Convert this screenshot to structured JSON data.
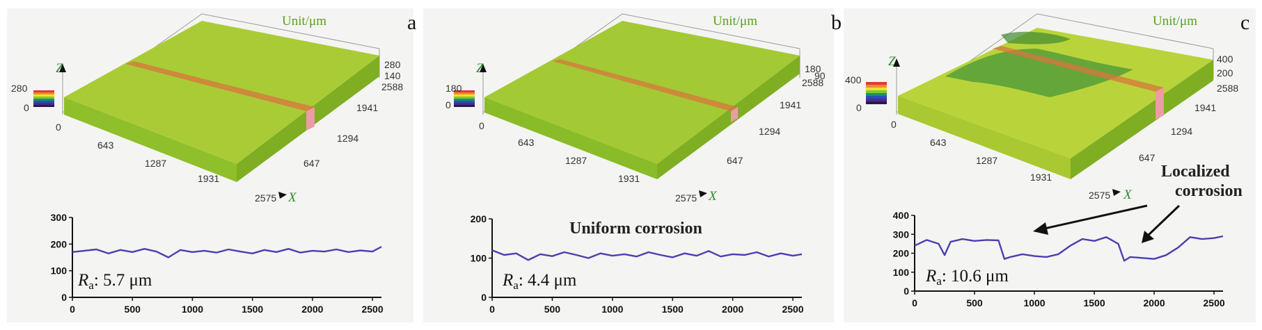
{
  "panels": [
    {
      "label": "a",
      "unit": "Unit/μm",
      "surface": {
        "colorbar_max": "280",
        "colorbar_min": "0",
        "x_ticks": [
          "0",
          "643",
          "1287",
          "1931",
          "2575"
        ],
        "y_ticks": [
          "647",
          "1294",
          "1941",
          "2588"
        ],
        "z_ticks": [
          "280",
          "140"
        ],
        "x_name": "X",
        "z_name": "Z",
        "colors": {
          "top": "#a9cc36",
          "front": "#8fbf2a"
        }
      },
      "profile": {
        "ra_symbol": "R",
        "ra_sub": "a",
        "ra_value": ": 5.7 μm",
        "y_ticks": [
          "300",
          "200",
          "100",
          "0"
        ],
        "x_ticks": [
          "0",
          "500",
          "1000",
          "1500",
          "2000",
          "2500"
        ]
      }
    },
    {
      "label": "b",
      "unit": "Unit/μm",
      "surface": {
        "colorbar_max": "180",
        "colorbar_min": "0",
        "x_ticks": [
          "0",
          "643",
          "1287",
          "1931",
          "2575"
        ],
        "y_ticks": [
          "647",
          "1294",
          "1941",
          "2588"
        ],
        "z_ticks": [
          "180",
          "90"
        ],
        "x_name": "X",
        "z_name": "Z",
        "colors": {
          "top": "#a3c934",
          "front": "#8abb28"
        }
      },
      "profile": {
        "ra_symbol": "R",
        "ra_sub": "a",
        "ra_value": ": 4.4 μm",
        "y_ticks": [
          "200",
          "100",
          "0"
        ],
        "x_ticks": [
          "0",
          "500",
          "1000",
          "1500",
          "2000",
          "2500"
        ]
      },
      "annotation": "Uniform corrosion"
    },
    {
      "label": "c",
      "unit": "Unit/μm",
      "surface": {
        "colorbar_max": "400",
        "colorbar_min": "0",
        "x_ticks": [
          "0",
          "643",
          "1287",
          "1931",
          "2575"
        ],
        "y_ticks": [
          "647",
          "1294",
          "1941",
          "2588"
        ],
        "z_ticks": [
          "400",
          "200"
        ],
        "x_name": "X",
        "z_name": "Z",
        "colors": {
          "top": "#b9d43a",
          "front": "#a9c832"
        }
      },
      "profile": {
        "ra_symbol": "R",
        "ra_sub": "a",
        "ra_value": ": 10.6 μm",
        "y_ticks": [
          "400",
          "300",
          "200",
          "100",
          "0"
        ],
        "x_ticks": [
          "0",
          "500",
          "1000",
          "1500",
          "2000",
          "2500"
        ]
      },
      "annotation_line1": "Localized",
      "annotation_line2": "corrosion"
    }
  ],
  "chart_data": [
    {
      "type": "line",
      "panel": "a",
      "xlim": [
        0,
        2575
      ],
      "ylim": [
        0,
        300
      ],
      "x": [
        0,
        100,
        200,
        300,
        400,
        500,
        600,
        700,
        800,
        900,
        1000,
        1100,
        1200,
        1300,
        1400,
        1500,
        1600,
        1700,
        1800,
        1900,
        2000,
        2100,
        2200,
        2300,
        2400,
        2500,
        2575
      ],
      "y": [
        170,
        175,
        180,
        165,
        178,
        170,
        182,
        172,
        150,
        178,
        170,
        175,
        168,
        180,
        172,
        165,
        178,
        170,
        182,
        168,
        175,
        172,
        180,
        170,
        176,
        172,
        190
      ]
    },
    {
      "type": "line",
      "panel": "b",
      "xlim": [
        0,
        2575
      ],
      "ylim": [
        0,
        200
      ],
      "x": [
        0,
        100,
        200,
        300,
        400,
        500,
        600,
        700,
        800,
        900,
        1000,
        1100,
        1200,
        1300,
        1400,
        1500,
        1600,
        1700,
        1800,
        1900,
        2000,
        2100,
        2200,
        2300,
        2400,
        2500,
        2575
      ],
      "y": [
        120,
        108,
        112,
        95,
        110,
        105,
        115,
        108,
        100,
        112,
        106,
        110,
        104,
        115,
        108,
        102,
        112,
        106,
        118,
        104,
        110,
        108,
        115,
        104,
        112,
        106,
        110
      ]
    },
    {
      "type": "line",
      "panel": "c",
      "xlim": [
        0,
        2575
      ],
      "ylim": [
        0,
        400
      ],
      "x": [
        0,
        100,
        200,
        250,
        300,
        400,
        500,
        600,
        700,
        750,
        800,
        900,
        1000,
        1100,
        1200,
        1300,
        1400,
        1500,
        1600,
        1700,
        1750,
        1800,
        1900,
        2000,
        2100,
        2200,
        2300,
        2400,
        2500,
        2575
      ],
      "y": [
        240,
        270,
        250,
        190,
        260,
        275,
        265,
        270,
        268,
        170,
        180,
        195,
        185,
        180,
        195,
        240,
        275,
        265,
        285,
        250,
        160,
        180,
        175,
        170,
        190,
        230,
        285,
        275,
        280,
        290
      ]
    }
  ]
}
